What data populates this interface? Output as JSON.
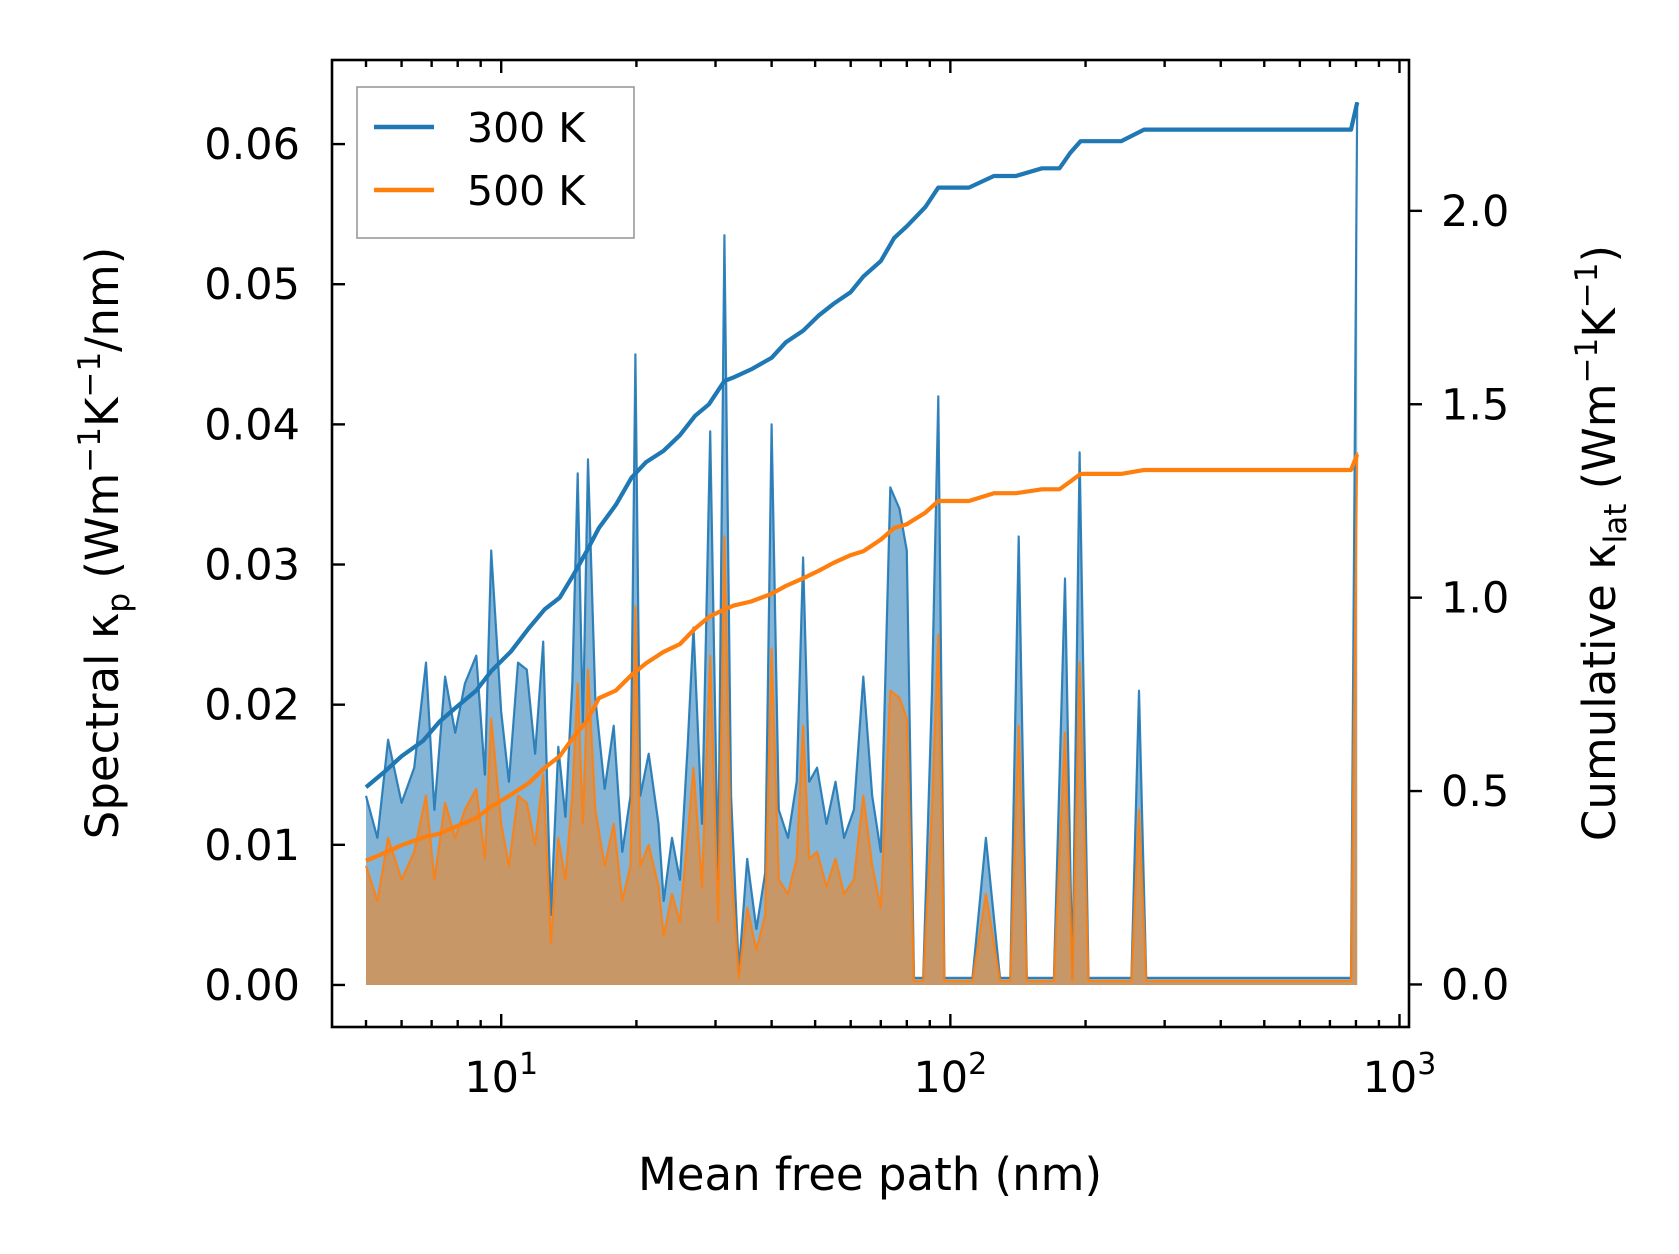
{
  "chart_data": {
    "type": "area+line",
    "xscale": "log",
    "xlim": [
      4.2,
      1050
    ],
    "ylim_left": [
      -0.003,
      0.066
    ],
    "ylim_right": [
      -0.11,
      2.39
    ],
    "xlabel": "Mean free path (nm)",
    "ylabel_left": {
      "text": "Spectral κ",
      "sub": "p",
      "units_open": " (Wm",
      "exp1": "−1",
      "mid": "K",
      "exp2": "−1",
      "close": "/nm)"
    },
    "ylabel_right": {
      "text": "Cumulative κ",
      "sub": "lat",
      "units_open": " (Wm",
      "exp1": "−1",
      "mid": "K",
      "exp2": "−1",
      "close": ")"
    },
    "x_ticks": [
      {
        "value": 10,
        "base": "10",
        "exp": "1"
      },
      {
        "value": 100,
        "base": "10",
        "exp": "2"
      },
      {
        "value": 1000,
        "base": "10",
        "exp": "3"
      }
    ],
    "yticks_left": [
      {
        "value": 0.0,
        "label": "0.00"
      },
      {
        "value": 0.01,
        "label": "0.01"
      },
      {
        "value": 0.02,
        "label": "0.02"
      },
      {
        "value": 0.03,
        "label": "0.03"
      },
      {
        "value": 0.04,
        "label": "0.04"
      },
      {
        "value": 0.05,
        "label": "0.05"
      },
      {
        "value": 0.06,
        "label": "0.06"
      }
    ],
    "yticks_right": [
      {
        "value": 0.0,
        "label": "0.0"
      },
      {
        "value": 0.5,
        "label": "0.5"
      },
      {
        "value": 1.0,
        "label": "1.0"
      },
      {
        "value": 1.5,
        "label": "1.5"
      },
      {
        "value": 2.0,
        "label": "2.0"
      }
    ],
    "legend": {
      "position": "upper-left",
      "entries": [
        {
          "label": "300 K",
          "color": "#1f77b4"
        },
        {
          "label": "500 K",
          "color": "#ff7f0e"
        }
      ]
    },
    "series": [
      {
        "name": "300 K",
        "color": "#1f77b4",
        "spectral_axis": "left",
        "spectral": [
          [
            5.0,
            0.0135
          ],
          [
            5.3,
            0.0105
          ],
          [
            5.6,
            0.0175
          ],
          [
            6.0,
            0.013
          ],
          [
            6.4,
            0.0155
          ],
          [
            6.8,
            0.023
          ],
          [
            7.1,
            0.0125
          ],
          [
            7.5,
            0.022
          ],
          [
            7.9,
            0.018
          ],
          [
            8.3,
            0.0215
          ],
          [
            8.8,
            0.0235
          ],
          [
            9.2,
            0.015
          ],
          [
            9.5,
            0.031
          ],
          [
            10.0,
            0.0195
          ],
          [
            10.4,
            0.0145
          ],
          [
            10.9,
            0.023
          ],
          [
            11.4,
            0.0225
          ],
          [
            11.9,
            0.0165
          ],
          [
            12.4,
            0.0245
          ],
          [
            12.9,
            0.005
          ],
          [
            13.4,
            0.017
          ],
          [
            13.9,
            0.012
          ],
          [
            14.4,
            0.0215
          ],
          [
            14.8,
            0.0365
          ],
          [
            15.2,
            0.0185
          ],
          [
            15.6,
            0.0375
          ],
          [
            16.2,
            0.0205
          ],
          [
            17.0,
            0.014
          ],
          [
            17.8,
            0.0185
          ],
          [
            18.6,
            0.0095
          ],
          [
            19.4,
            0.0135
          ],
          [
            19.9,
            0.045
          ],
          [
            20.4,
            0.0135
          ],
          [
            21.3,
            0.0165
          ],
          [
            22.4,
            0.0115
          ],
          [
            23.0,
            0.006
          ],
          [
            24.0,
            0.0105
          ],
          [
            25.0,
            0.0075
          ],
          [
            26.0,
            0.017
          ],
          [
            26.8,
            0.0255
          ],
          [
            28.0,
            0.0115
          ],
          [
            29.2,
            0.0395
          ],
          [
            30.4,
            0.0075
          ],
          [
            31.4,
            0.0535
          ],
          [
            32.5,
            0.0135
          ],
          [
            33.8,
            0.001
          ],
          [
            35.3,
            0.009
          ],
          [
            37.0,
            0.004
          ],
          [
            38.7,
            0.008
          ],
          [
            40.0,
            0.04
          ],
          [
            41.5,
            0.0125
          ],
          [
            43.5,
            0.0105
          ],
          [
            45.5,
            0.0145
          ],
          [
            47.0,
            0.0305
          ],
          [
            48.5,
            0.0145
          ],
          [
            50.5,
            0.0155
          ],
          [
            53.0,
            0.0115
          ],
          [
            55.5,
            0.0145
          ],
          [
            58.0,
            0.0105
          ],
          [
            61.0,
            0.0125
          ],
          [
            64.0,
            0.022
          ],
          [
            67.0,
            0.0135
          ],
          [
            70.0,
            0.0095
          ],
          [
            73.5,
            0.0355
          ],
          [
            77.0,
            0.034
          ],
          [
            80.0,
            0.031
          ],
          [
            83.0,
            0.0005
          ],
          [
            87.0,
            0.0005
          ],
          [
            91.0,
            0.021
          ],
          [
            94.0,
            0.042
          ],
          [
            97.0,
            0.0005
          ],
          [
            104.0,
            0.0005
          ],
          [
            112.0,
            0.0005
          ],
          [
            120.0,
            0.0105
          ],
          [
            129.0,
            0.0005
          ],
          [
            136.0,
            0.0005
          ],
          [
            142.0,
            0.032
          ],
          [
            148.0,
            0.0005
          ],
          [
            170.0,
            0.0005
          ],
          [
            180.0,
            0.029
          ],
          [
            187.0,
            0.0005
          ],
          [
            194.0,
            0.038
          ],
          [
            203.0,
            0.0005
          ],
          [
            253.0,
            0.0005
          ],
          [
            263.0,
            0.021
          ],
          [
            273.0,
            0.0005
          ],
          [
            780.0,
            0.0005
          ],
          [
            805.0,
            0.063
          ]
        ],
        "cumulative_axis": "right",
        "cumulative": [
          [
            5.0,
            0.51
          ],
          [
            5.5,
            0.55
          ],
          [
            6.0,
            0.59
          ],
          [
            6.7,
            0.63
          ],
          [
            7.3,
            0.68
          ],
          [
            8.0,
            0.72
          ],
          [
            8.8,
            0.76
          ],
          [
            9.5,
            0.81
          ],
          [
            10.5,
            0.86
          ],
          [
            11.5,
            0.92
          ],
          [
            12.5,
            0.97
          ],
          [
            13.5,
            1.0
          ],
          [
            14.5,
            1.06
          ],
          [
            15.5,
            1.12
          ],
          [
            16.5,
            1.18
          ],
          [
            18.0,
            1.24
          ],
          [
            19.5,
            1.31
          ],
          [
            21.0,
            1.35
          ],
          [
            23.0,
            1.38
          ],
          [
            25.0,
            1.42
          ],
          [
            27.0,
            1.47
          ],
          [
            29.0,
            1.5
          ],
          [
            31.4,
            1.56
          ],
          [
            33.0,
            1.57
          ],
          [
            36.0,
            1.59
          ],
          [
            40.0,
            1.62
          ],
          [
            43.0,
            1.66
          ],
          [
            47.0,
            1.69
          ],
          [
            51.0,
            1.73
          ],
          [
            55.0,
            1.76
          ],
          [
            60.0,
            1.79
          ],
          [
            64.0,
            1.83
          ],
          [
            70.0,
            1.87
          ],
          [
            75.0,
            1.93
          ],
          [
            80.0,
            1.96
          ],
          [
            88.0,
            2.01
          ],
          [
            94.0,
            2.06
          ],
          [
            110.0,
            2.06
          ],
          [
            125.0,
            2.09
          ],
          [
            140.0,
            2.09
          ],
          [
            160.0,
            2.11
          ],
          [
            175.0,
            2.11
          ],
          [
            185.0,
            2.15
          ],
          [
            195.0,
            2.18
          ],
          [
            240.0,
            2.18
          ],
          [
            270.0,
            2.21
          ],
          [
            780.0,
            2.21
          ],
          [
            805.0,
            2.28
          ]
        ]
      },
      {
        "name": "500 K",
        "color": "#ff7f0e",
        "spectral_axis": "left",
        "spectral": [
          [
            5.0,
            0.0085
          ],
          [
            5.3,
            0.006
          ],
          [
            5.6,
            0.0105
          ],
          [
            6.0,
            0.0075
          ],
          [
            6.4,
            0.0095
          ],
          [
            6.8,
            0.0135
          ],
          [
            7.1,
            0.0075
          ],
          [
            7.5,
            0.013
          ],
          [
            7.9,
            0.0105
          ],
          [
            8.3,
            0.0125
          ],
          [
            8.8,
            0.014
          ],
          [
            9.2,
            0.009
          ],
          [
            9.5,
            0.019
          ],
          [
            10.0,
            0.0115
          ],
          [
            10.4,
            0.0085
          ],
          [
            10.9,
            0.0135
          ],
          [
            11.4,
            0.013
          ],
          [
            11.9,
            0.01
          ],
          [
            12.4,
            0.015
          ],
          [
            12.9,
            0.003
          ],
          [
            13.4,
            0.0105
          ],
          [
            13.9,
            0.0075
          ],
          [
            14.4,
            0.0135
          ],
          [
            14.8,
            0.0215
          ],
          [
            15.2,
            0.0115
          ],
          [
            15.6,
            0.0225
          ],
          [
            16.2,
            0.0125
          ],
          [
            17.0,
            0.0085
          ],
          [
            17.8,
            0.0115
          ],
          [
            18.6,
            0.006
          ],
          [
            19.4,
            0.0085
          ],
          [
            19.9,
            0.027
          ],
          [
            20.4,
            0.0085
          ],
          [
            21.3,
            0.01
          ],
          [
            22.4,
            0.007
          ],
          [
            23.0,
            0.0035
          ],
          [
            24.0,
            0.0065
          ],
          [
            25.0,
            0.0045
          ],
          [
            26.0,
            0.0105
          ],
          [
            26.8,
            0.0155
          ],
          [
            28.0,
            0.007
          ],
          [
            29.2,
            0.0235
          ],
          [
            30.4,
            0.0045
          ],
          [
            31.4,
            0.032
          ],
          [
            32.5,
            0.0085
          ],
          [
            33.8,
            0.0005
          ],
          [
            35.3,
            0.0055
          ],
          [
            37.0,
            0.0025
          ],
          [
            38.7,
            0.005
          ],
          [
            40.0,
            0.024
          ],
          [
            41.5,
            0.0075
          ],
          [
            43.5,
            0.0065
          ],
          [
            45.5,
            0.009
          ],
          [
            47.0,
            0.0185
          ],
          [
            48.5,
            0.009
          ],
          [
            50.5,
            0.0095
          ],
          [
            53.0,
            0.007
          ],
          [
            55.5,
            0.009
          ],
          [
            58.0,
            0.0065
          ],
          [
            61.0,
            0.0075
          ],
          [
            64.0,
            0.0135
          ],
          [
            67.0,
            0.0085
          ],
          [
            70.0,
            0.0055
          ],
          [
            73.5,
            0.021
          ],
          [
            77.0,
            0.0205
          ],
          [
            80.0,
            0.019
          ],
          [
            83.0,
            0.0003
          ],
          [
            87.0,
            0.0003
          ],
          [
            91.0,
            0.0125
          ],
          [
            94.0,
            0.025
          ],
          [
            97.0,
            0.0003
          ],
          [
            104.0,
            0.0003
          ],
          [
            112.0,
            0.0003
          ],
          [
            120.0,
            0.0065
          ],
          [
            129.0,
            0.0003
          ],
          [
            136.0,
            0.0003
          ],
          [
            142.0,
            0.0185
          ],
          [
            148.0,
            0.0003
          ],
          [
            170.0,
            0.0003
          ],
          [
            180.0,
            0.018
          ],
          [
            187.0,
            0.0003
          ],
          [
            194.0,
            0.023
          ],
          [
            203.0,
            0.0003
          ],
          [
            253.0,
            0.0003
          ],
          [
            263.0,
            0.0125
          ],
          [
            273.0,
            0.0003
          ],
          [
            780.0,
            0.0003
          ],
          [
            805.0,
            0.038
          ]
        ],
        "cumulative_axis": "right",
        "cumulative": [
          [
            5.0,
            0.32
          ],
          [
            5.5,
            0.34
          ],
          [
            6.0,
            0.36
          ],
          [
            6.7,
            0.38
          ],
          [
            7.3,
            0.39
          ],
          [
            8.0,
            0.41
          ],
          [
            8.8,
            0.43
          ],
          [
            9.5,
            0.46
          ],
          [
            10.5,
            0.49
          ],
          [
            11.5,
            0.52
          ],
          [
            12.5,
            0.56
          ],
          [
            13.5,
            0.59
          ],
          [
            14.5,
            0.64
          ],
          [
            15.5,
            0.68
          ],
          [
            16.5,
            0.74
          ],
          [
            18.0,
            0.76
          ],
          [
            19.5,
            0.8
          ],
          [
            21.0,
            0.83
          ],
          [
            23.0,
            0.86
          ],
          [
            25.0,
            0.88
          ],
          [
            27.0,
            0.92
          ],
          [
            29.0,
            0.95
          ],
          [
            31.4,
            0.97
          ],
          [
            33.0,
            0.98
          ],
          [
            36.0,
            0.99
          ],
          [
            40.0,
            1.01
          ],
          [
            43.0,
            1.03
          ],
          [
            47.0,
            1.05
          ],
          [
            51.0,
            1.07
          ],
          [
            55.0,
            1.09
          ],
          [
            60.0,
            1.11
          ],
          [
            64.0,
            1.12
          ],
          [
            70.0,
            1.15
          ],
          [
            75.0,
            1.18
          ],
          [
            80.0,
            1.19
          ],
          [
            88.0,
            1.22
          ],
          [
            94.0,
            1.25
          ],
          [
            110.0,
            1.25
          ],
          [
            125.0,
            1.27
          ],
          [
            140.0,
            1.27
          ],
          [
            160.0,
            1.28
          ],
          [
            175.0,
            1.28
          ],
          [
            185.0,
            1.3
          ],
          [
            195.0,
            1.32
          ],
          [
            240.0,
            1.32
          ],
          [
            270.0,
            1.33
          ],
          [
            780.0,
            1.33
          ],
          [
            805.0,
            1.37
          ]
        ]
      }
    ]
  }
}
